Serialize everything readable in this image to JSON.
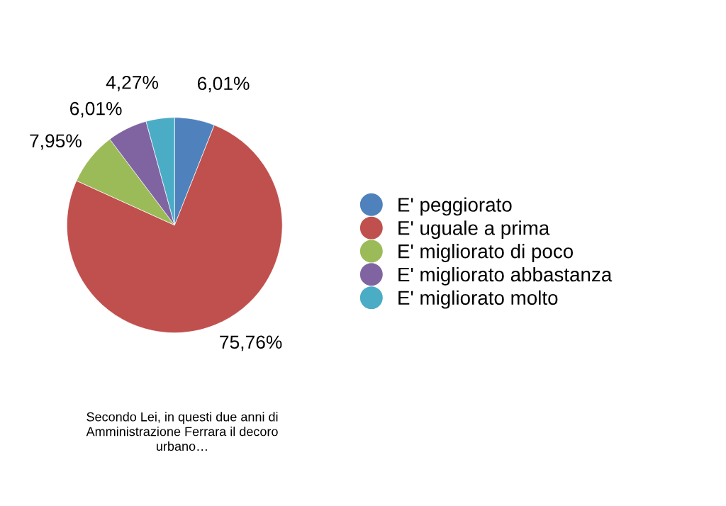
{
  "chart_data": {
    "type": "pie",
    "categories": [
      "E' peggiorato",
      "E' uguale a prima",
      "E' migliorato di poco",
      "E' migliorato abbastanza",
      "E' migliorato molto"
    ],
    "values": [
      6.01,
      75.76,
      7.95,
      6.01,
      4.27
    ],
    "value_labels": [
      "6,01%",
      "75,76%",
      "7,95%",
      "6,01%",
      "4,27%"
    ],
    "colors": [
      "#4f81bd",
      "#c0504d",
      "#9bbb59",
      "#8064a2",
      "#4bacc6"
    ],
    "legend": "right",
    "annotations": [
      "Secondo Lei, in questi due anni di\nAmministrazione Ferrara il decoro\nurbano…"
    ]
  }
}
